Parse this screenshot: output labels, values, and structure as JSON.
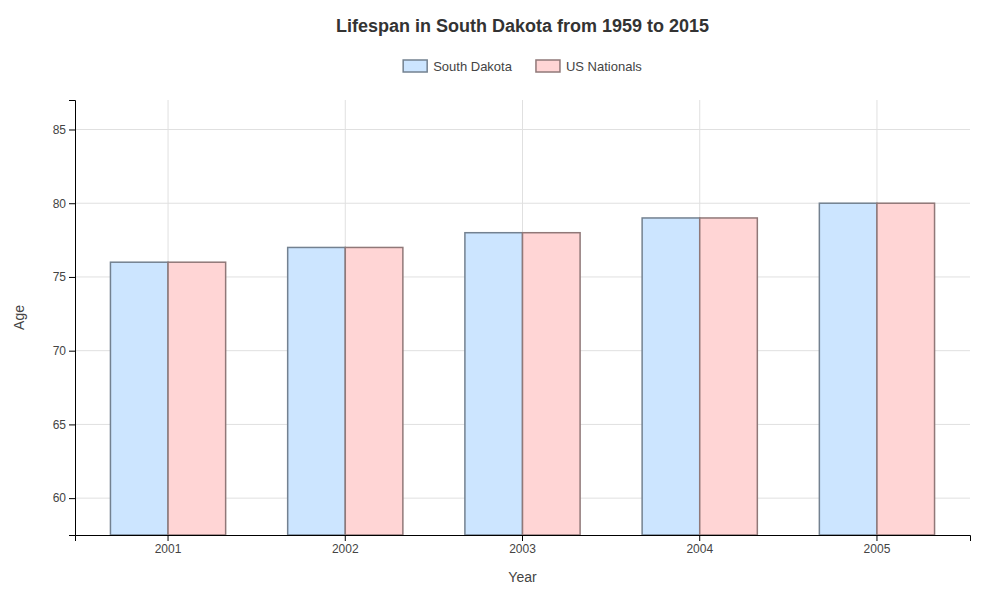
{
  "chart_data": {
    "type": "bar",
    "title": "Lifespan in South Dakota from 1959 to 2015",
    "xlabel": "Year",
    "ylabel": "Age",
    "categories": [
      "2001",
      "2002",
      "2003",
      "2004",
      "2005"
    ],
    "series": [
      {
        "name": "South Dakota",
        "color": "#cce5ff",
        "values": [
          76,
          77,
          78,
          79,
          80
        ]
      },
      {
        "name": "US Nationals",
        "color": "#ffd5d5",
        "values": [
          76,
          77,
          78,
          79,
          80
        ]
      }
    ],
    "ylim": [
      57.5,
      87
    ],
    "yticks": [
      60,
      65,
      70,
      75,
      80,
      85
    ],
    "grid": true,
    "legend": "top"
  }
}
